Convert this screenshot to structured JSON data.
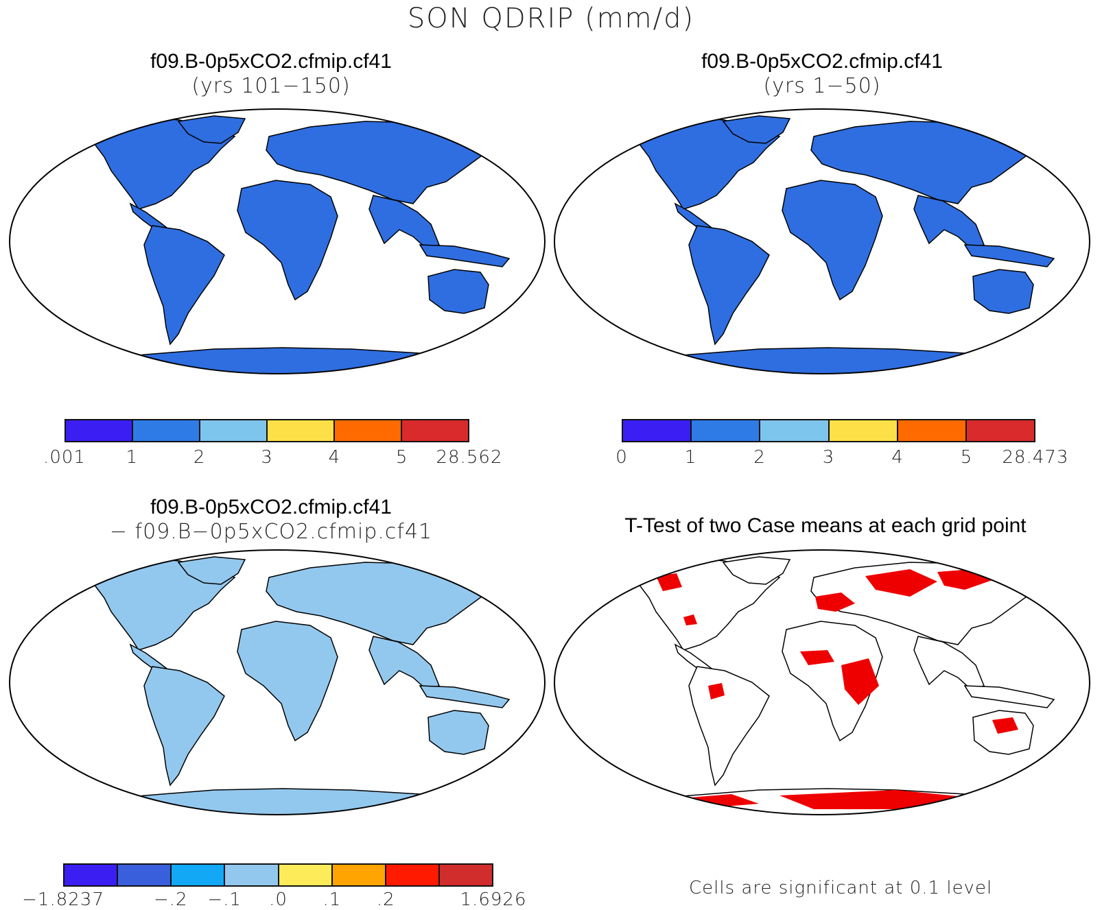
{
  "title": "SON QDRIP (mm/d)",
  "panels": [
    {
      "line1": "f09.B-0p5xCO2.cfmip.cf41",
      "line2": "(yrs 101−150)",
      "colorbar": {
        "colors": [
          "#3a1ef2",
          "#2f7be6",
          "#7ec5ee",
          "#fde047",
          "#ff6a00",
          "#d92b2b"
        ],
        "labels": [
          ".001",
          "1",
          "2",
          "3",
          "4",
          "5",
          "28.562"
        ]
      }
    },
    {
      "line1": "f09.B-0p5xCO2.cfmip.cf41",
      "line2": "(yrs 1−50)",
      "colorbar": {
        "colors": [
          "#3a1ef2",
          "#2f7be6",
          "#7ec5ee",
          "#fde047",
          "#ff6a00",
          "#d92b2b"
        ],
        "labels": [
          "0",
          "1",
          "2",
          "3",
          "4",
          "5",
          "28.473"
        ]
      }
    },
    {
      "line1": "f09.B-0p5xCO2.cfmip.cf41",
      "line2": "− f09.B−0p5xCO2.cfmip.cf41",
      "colorbar": {
        "colors": [
          "#3a1ef2",
          "#3a5fdc",
          "#12a8f5",
          "#93c8ee",
          "#fdeb5a",
          "#ffa400",
          "#ff1a00",
          "#d12d2d"
        ],
        "labels": [
          "−1.8237",
          "−.2",
          "−.1",
          ".0",
          ".1",
          ".2",
          "1.6926"
        ]
      }
    },
    {
      "line1": "T-Test of two Case means at each grid point",
      "note": "Cells are significant at 0.1 level",
      "sig_color": "#ee0000"
    }
  ]
}
